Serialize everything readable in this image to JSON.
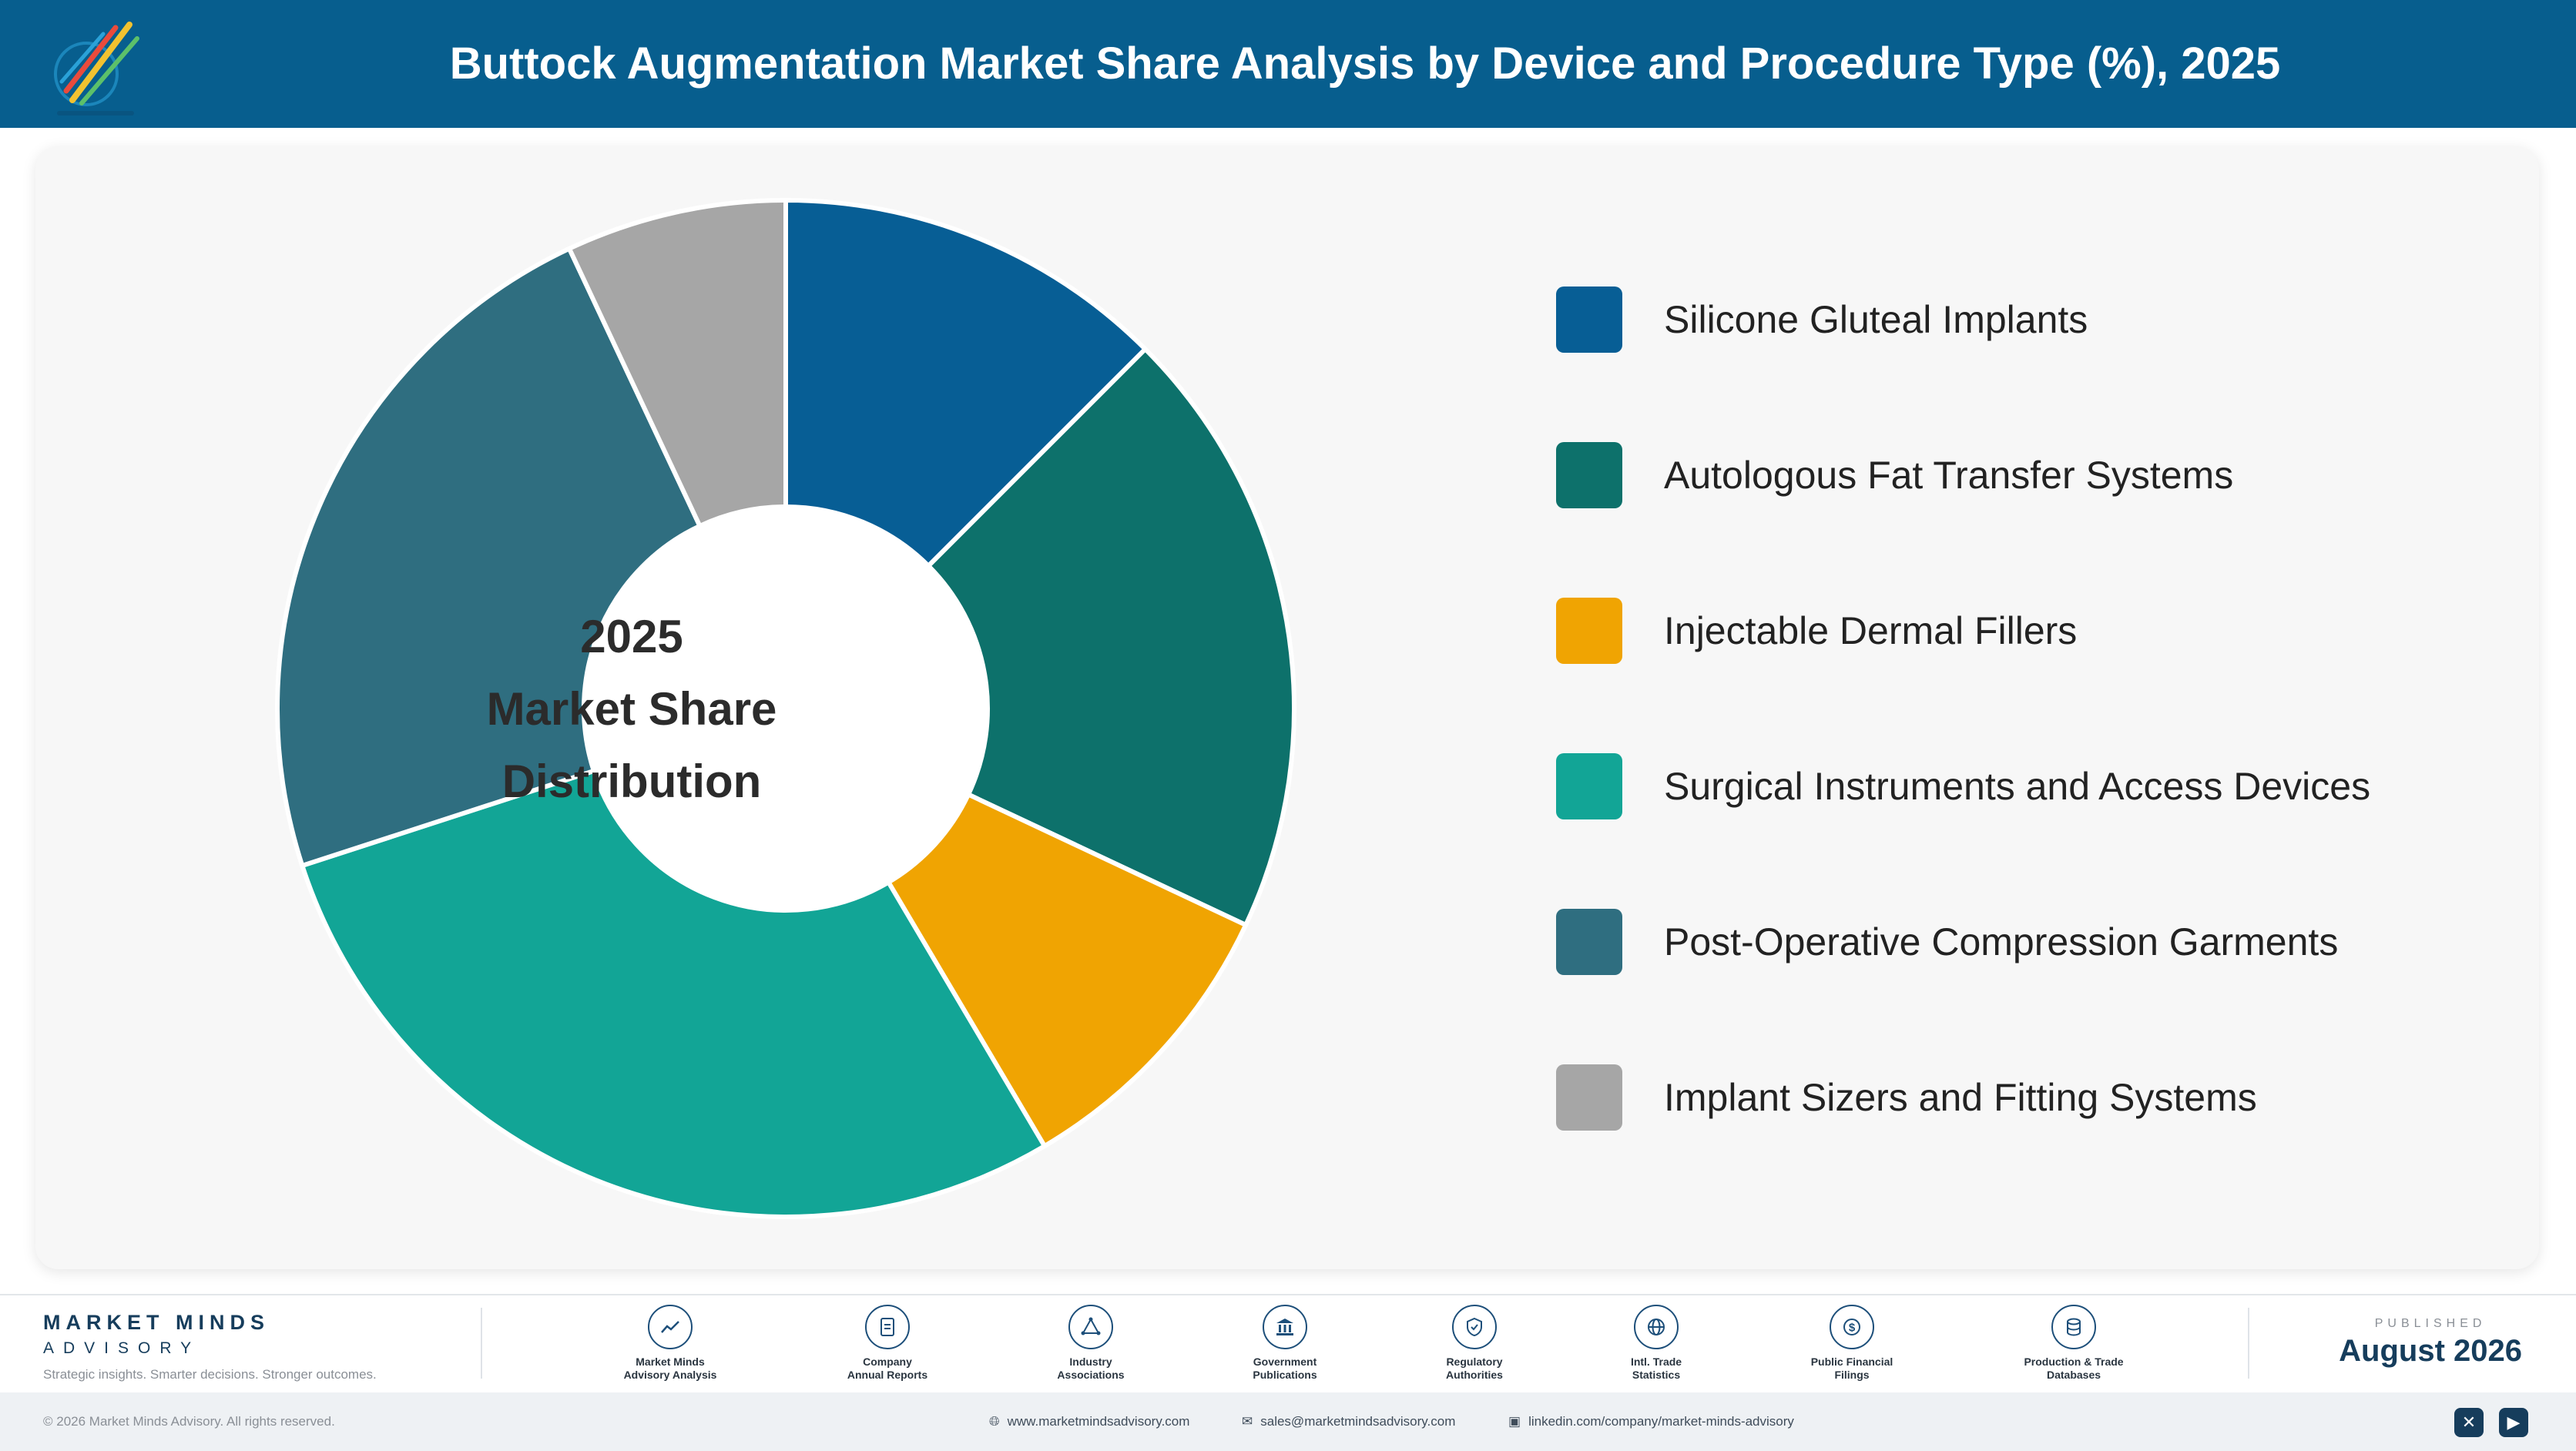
{
  "header": {
    "title": "Buttock Augmentation Market Share Analysis by Device and Procedure Type (%), 2025"
  },
  "chart_data": {
    "type": "pie",
    "categories": [
      "Silicone Gluteal Implants",
      "Autologous Fat Transfer Systems",
      "Injectable Dermal Fillers",
      "Surgical Instruments and Access Devices",
      "Post-Operative Compression Garments",
      "Implant Sizers and Fitting Systems"
    ],
    "values": [
      12.5,
      19.5,
      9.5,
      28.5,
      23,
      7
    ],
    "colors": [
      "#075e95",
      "#0d716b",
      "#f0a402",
      "#12a596",
      "#2f6e80",
      "#a6a6a6"
    ],
    "center_text": [
      "2025",
      "Market Share",
      "Distribution"
    ],
    "legend_position": "right",
    "donut": true
  },
  "footer": {
    "brand_name": "MARKET MINDS",
    "brand_sub": "ADVISORY",
    "tagline": "Strategic insights. Smarter decisions. Stronger outcomes.",
    "sources": [
      {
        "icon": "trend-icon",
        "lines": [
          "Market Minds",
          "Advisory Analysis"
        ]
      },
      {
        "icon": "document-icon",
        "lines": [
          "Company",
          "Annual Reports"
        ]
      },
      {
        "icon": "network-icon",
        "lines": [
          "Industry",
          "Associations"
        ]
      },
      {
        "icon": "government-icon",
        "lines": [
          "Government",
          "Publications"
        ]
      },
      {
        "icon": "shield-icon",
        "lines": [
          "Regulatory",
          "Authorities"
        ]
      },
      {
        "icon": "globe-icon",
        "lines": [
          "Intl. Trade",
          "Statistics"
        ]
      },
      {
        "icon": "dollar-icon",
        "lines": [
          "Public Financial",
          "Filings"
        ]
      },
      {
        "icon": "database-icon",
        "lines": [
          "Production & Trade",
          "Databases"
        ]
      }
    ],
    "published_label": "PUBLISHED",
    "published_date": "August 2026",
    "copyright": "© 2026 Market Minds Advisory. All rights reserved.",
    "website": "www.marketmindsadvisory.com",
    "email": "sales@marketmindsadvisory.com",
    "linkedin": "linkedin.com/company/market-minds-advisory"
  }
}
